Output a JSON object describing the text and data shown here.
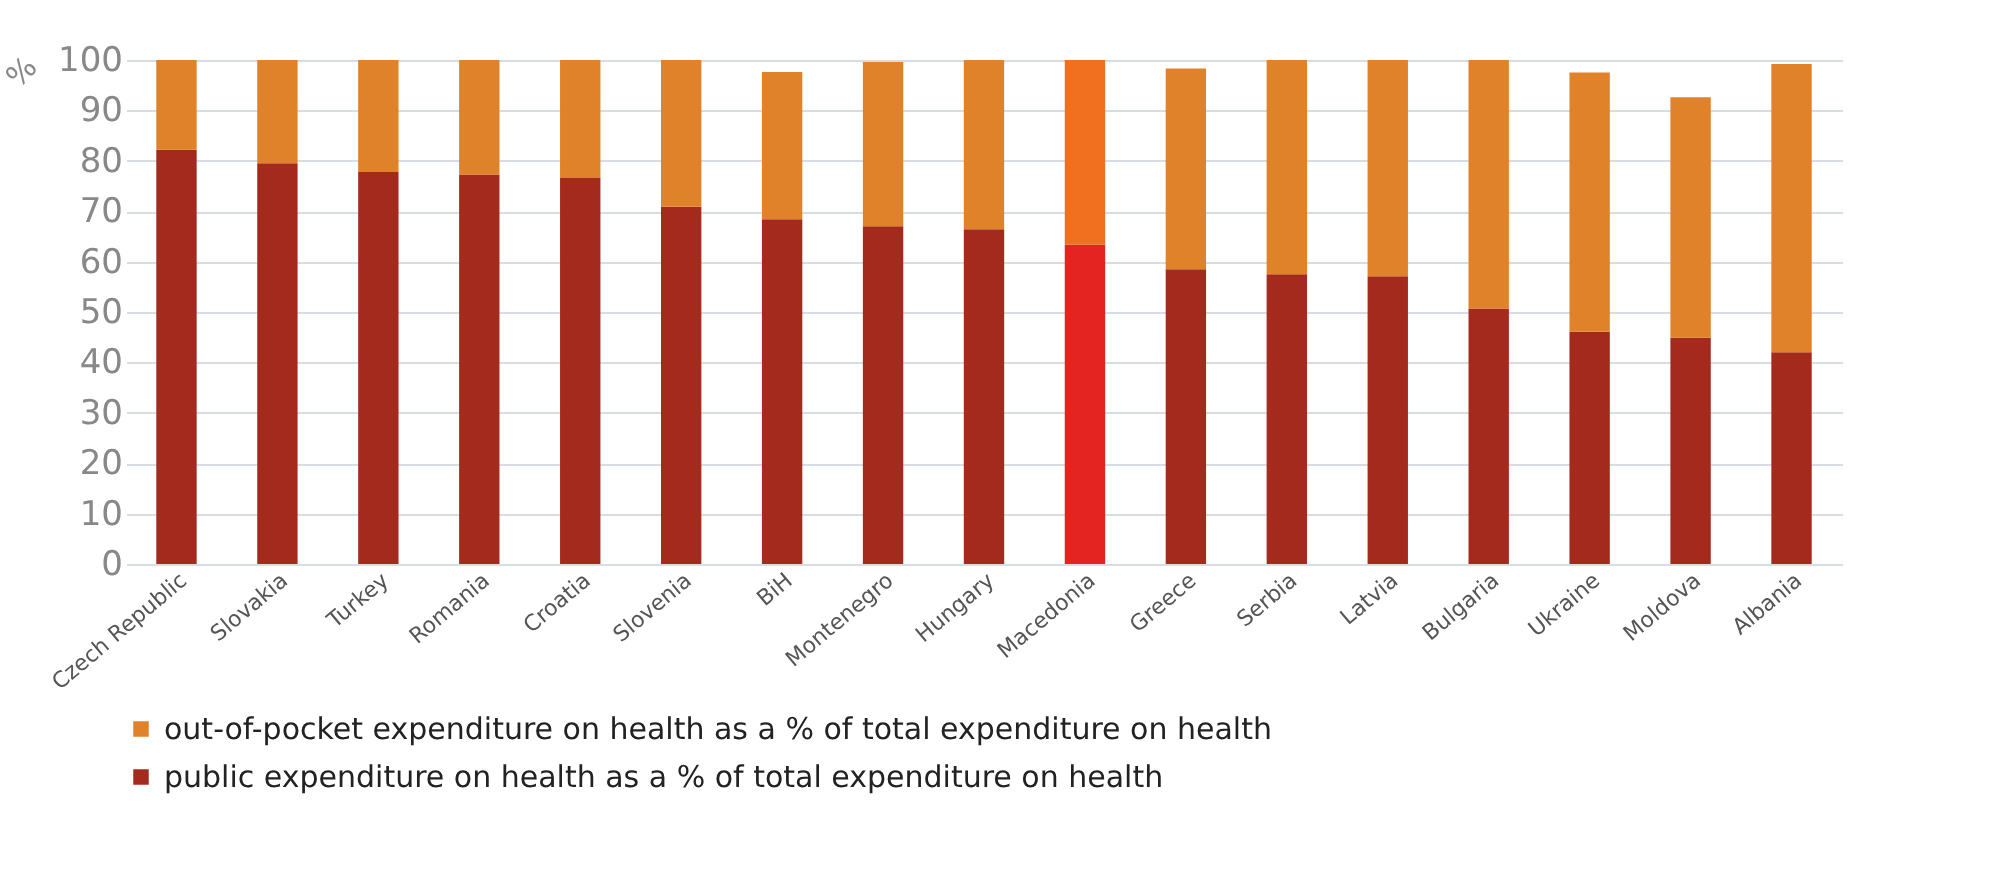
{
  "chart_data": {
    "type": "bar",
    "ylabel": "%",
    "categories": [
      "Czech Republic",
      "Slovakia",
      "Turkey",
      "Romania",
      "Croatia",
      "Slovenia",
      "BiH",
      "Montenegro",
      "Hungary",
      "Macedonia",
      "Greece",
      "Serbia",
      "Latvia",
      "Bulgaria",
      "Ukraine",
      "Moldova",
      "Albania"
    ],
    "series": [
      {
        "name": "public expenditure on health as a % of total expenditure on health",
        "color": "#a52a1e",
        "colors": [
          "#a52a1e",
          "#a52a1e",
          "#a52a1e",
          "#a52a1e",
          "#a52a1e",
          "#a52a1e",
          "#a52a1e",
          "#a52a1e",
          "#a52a1e",
          "#e32420",
          "#a52a1e",
          "#a52a1e",
          "#a52a1e",
          "#a52a1e",
          "#a52a1e",
          "#a52a1e",
          "#a52a1e"
        ],
        "values": [
          82.2,
          79.5,
          77.8,
          77.3,
          76.6,
          70.9,
          68.4,
          67.0,
          66.4,
          63.4,
          58.5,
          57.5,
          57.1,
          50.7,
          46.1,
          44.9,
          42.0
        ]
      },
      {
        "name": "out-of-pocket expenditure on health as a % of total expenditure on health",
        "color": "#e0822a",
        "colors": [
          "#e0822a",
          "#e0822a",
          "#e0822a",
          "#e0822a",
          "#e0822a",
          "#e0822a",
          "#e0822a",
          "#e0822a",
          "#e0822a",
          "#f07020",
          "#e0822a",
          "#e0822a",
          "#e0822a",
          "#e0822a",
          "#e0822a",
          "#e0822a",
          "#e0822a"
        ],
        "values": [
          17.8,
          20.5,
          22.2,
          22.7,
          23.4,
          29.1,
          29.2,
          32.6,
          33.6,
          36.6,
          39.8,
          42.5,
          42.9,
          49.3,
          51.4,
          47.7,
          57.2
        ]
      }
    ],
    "stacked": true,
    "ylim": [
      0,
      100
    ],
    "yticks": [
      0,
      10,
      20,
      30,
      40,
      50,
      60,
      70,
      80,
      90,
      100
    ],
    "grid": "y",
    "legend": "bottom"
  }
}
